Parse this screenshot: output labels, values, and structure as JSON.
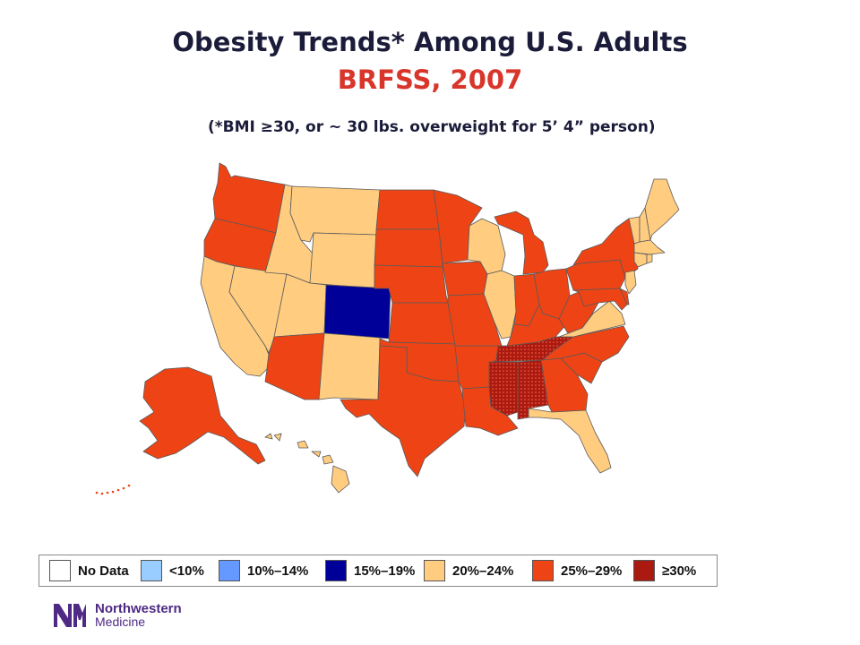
{
  "title": "Obesity Trends* Among U.S. Adults",
  "subtitle": "BRFSS, 2007",
  "footnote": "(*BMI ≥30, or ~ 30 lbs. overweight for 5’ 4” person)",
  "legend": [
    {
      "label": "No Data",
      "color": "#ffffff"
    },
    {
      "label": "<10%",
      "color": "#99ccff"
    },
    {
      "label": "10%–14%",
      "color": "#6699ff"
    },
    {
      "label": "15%–19%",
      "color": "#000099"
    },
    {
      "label": "20%–24%",
      "color": "#ffcc80"
    },
    {
      "label": "25%–29%",
      "color": "#ee4415"
    },
    {
      "label": "≥30%",
      "color": "#aa1a10"
    }
  ],
  "categories": {
    "c20_24": [
      "CA",
      "NV",
      "ID",
      "MT",
      "WY",
      "UT",
      "NM",
      "WI",
      "IL",
      "VA",
      "FL",
      "VT",
      "NH",
      "ME",
      "MA",
      "CT",
      "RI",
      "NJ",
      "HI"
    ],
    "c25_29": [
      "WA",
      "OR",
      "AZ",
      "ND",
      "SD",
      "NE",
      "KS",
      "OK",
      "TX",
      "MN",
      "IA",
      "MO",
      "AR",
      "LA",
      "MI",
      "IN",
      "OH",
      "KY",
      "GA",
      "SC",
      "NC",
      "WV",
      "PA",
      "NY",
      "MD",
      "DE",
      "AK"
    ],
    "c15_19": [
      "CO"
    ],
    "c30_plus": [
      "TN",
      "MS",
      "AL"
    ]
  },
  "logo": {
    "line1": "Northwestern",
    "line2": "Medicine"
  }
}
